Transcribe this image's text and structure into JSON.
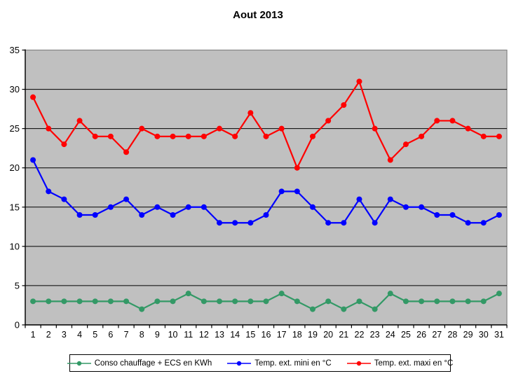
{
  "title": "Aout 2013",
  "colors": {
    "page_bg": "#FFFFFF",
    "plot_bg": "#C0C0C0",
    "plot_border": "#848484",
    "gridline": "#000000",
    "axis": "#000000",
    "series_green": "#339966",
    "series_blue": "#0000FF",
    "series_red": "#FF0000",
    "legend_border": "#000000",
    "legend_bg": "#FFFFFF"
  },
  "y_axis": {
    "min": 0,
    "max": 35,
    "step": 5,
    "tick_labels": [
      "0",
      "5",
      "10",
      "15",
      "20",
      "25",
      "30",
      "35"
    ]
  },
  "x_axis": {
    "tick_labels": [
      "1",
      "2",
      "3",
      "4",
      "5",
      "6",
      "7",
      "8",
      "9",
      "10",
      "11",
      "12",
      "13",
      "14",
      "15",
      "16",
      "17",
      "18",
      "19",
      "20",
      "21",
      "22",
      "23",
      "24",
      "25",
      "26",
      "27",
      "28",
      "29",
      "30",
      "31"
    ]
  },
  "chart_data": {
    "type": "line",
    "title": "Aout 2013",
    "xlabel": "",
    "ylabel": "",
    "x": [
      1,
      2,
      3,
      4,
      5,
      6,
      7,
      8,
      9,
      10,
      11,
      12,
      13,
      14,
      15,
      16,
      17,
      18,
      19,
      20,
      21,
      22,
      23,
      24,
      25,
      26,
      27,
      28,
      29,
      30,
      31
    ],
    "ylim": [
      0,
      35
    ],
    "y_step": 5,
    "grid": "horizontal",
    "legend_position": "bottom",
    "plot_background": "#C0C0C0",
    "series": [
      {
        "name": "Conso chauffage + ECS en KWh",
        "color": "#339966",
        "values": [
          3,
          3,
          3,
          3,
          3,
          3,
          3,
          2,
          3,
          3,
          4,
          3,
          3,
          3,
          3,
          3,
          4,
          3,
          2,
          3,
          2,
          3,
          2,
          4,
          3,
          3,
          3,
          3,
          3,
          3,
          4
        ]
      },
      {
        "name": "Temp. ext. mini en °C",
        "color": "#0000FF",
        "values": [
          21,
          17,
          16,
          14,
          14,
          15,
          16,
          14,
          15,
          14,
          15,
          15,
          13,
          13,
          13,
          14,
          17,
          17,
          15,
          13,
          13,
          16,
          13,
          16,
          15,
          15,
          14,
          14,
          13,
          13,
          14
        ]
      },
      {
        "name": "Temp. ext. maxi en °C",
        "color": "#FF0000",
        "values": [
          29,
          25,
          23,
          26,
          24,
          24,
          22,
          25,
          24,
          24,
          24,
          24,
          25,
          24,
          27,
          24,
          25,
          20,
          24,
          26,
          28,
          31,
          25,
          21,
          23,
          24,
          26,
          26,
          25,
          24,
          24
        ]
      }
    ]
  }
}
